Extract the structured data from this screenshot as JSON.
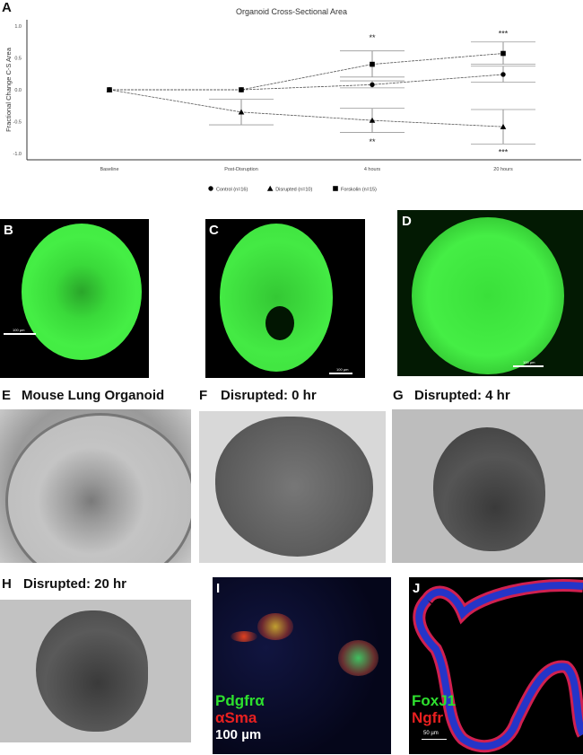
{
  "panel_labels": {
    "a": "A",
    "b": "B",
    "c": "C",
    "d": "D",
    "e": "E",
    "f": "F",
    "g": "G",
    "h": "H",
    "i": "I",
    "j": "J"
  },
  "chart_data": {
    "type": "line",
    "title": "Organoid Cross-Sectional Area",
    "xlabel": "",
    "ylabel": "Fractional Change C-S Area",
    "categories": [
      "Baseline",
      "Post-Disruption",
      "4 hours",
      "20 hours"
    ],
    "ylim": [
      -1.0,
      1.0
    ],
    "yticks": [
      "1.0",
      "0.5",
      "0.0",
      "-0.5",
      "-1.0"
    ],
    "ytick_values": [
      1.0,
      0.5,
      0.0,
      -0.5,
      -1.0
    ],
    "grid": false,
    "legend_position": "bottom",
    "series": [
      {
        "name": "Control (n=16)",
        "marker": "circle",
        "values": [
          0,
          0,
          0.08,
          0.24
        ],
        "err_low": [
          0,
          0,
          0.03,
          0.12
        ],
        "err_high": [
          0,
          0,
          0.14,
          0.37
        ]
      },
      {
        "name": "Disrupted (n=10)",
        "marker": "triangle",
        "values": [
          0,
          -0.35,
          -0.48,
          -0.58
        ],
        "err_low": [
          0,
          -0.55,
          -0.67,
          -0.85
        ],
        "err_high": [
          0,
          -0.15,
          -0.29,
          -0.31
        ]
      },
      {
        "name": "Forskolin (n=15)",
        "marker": "square",
        "values": [
          0,
          0,
          0.4,
          0.57
        ],
        "err_low": [
          0,
          0,
          0.2,
          0.4
        ],
        "err_high": [
          0,
          0,
          0.61,
          0.75
        ]
      }
    ],
    "annotations": [
      {
        "text": "**",
        "category": "4 hours",
        "y": 0.82
      },
      {
        "text": "***",
        "category": "20 hours",
        "y": 0.88
      },
      {
        "text": "**",
        "category": "4 hours",
        "y": -0.82
      },
      {
        "text": "***",
        "category": "20 hours",
        "y": -0.98
      }
    ]
  },
  "scale_bars": {
    "b": "100 µm",
    "c": "100 µm",
    "d": "100 µm",
    "i": "100 µm",
    "j": "50 µm"
  },
  "titles": {
    "e": "Mouse Lung Organoid",
    "f": "Disrupted: 0 hr",
    "g": "Disrupted: 4 hr",
    "h": "Disrupted: 20 hr"
  },
  "stains": {
    "i_green": "Pdgfrα",
    "i_red": "αSma",
    "j_green": "FoxJ1",
    "j_red": "Ngfr"
  },
  "colors": {
    "green_stain": "#2ee02e",
    "red_stain": "#e82020",
    "blue_stain": "#2030c0"
  }
}
